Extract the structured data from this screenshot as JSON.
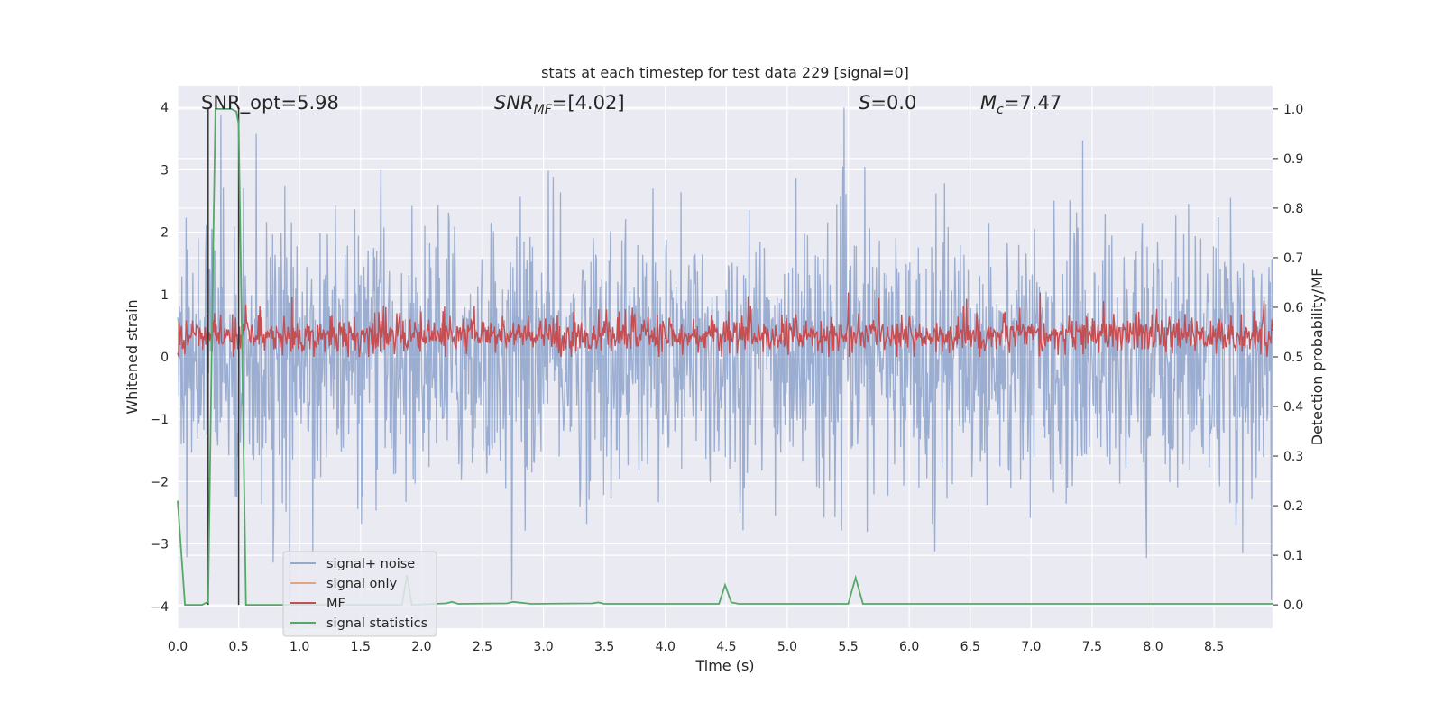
{
  "chart_data": {
    "type": "line",
    "title": "stats at each timestep for test data 229 [signal=0]",
    "xlabel": "Time (s)",
    "ylabel": "Whitened strain",
    "ylabel_right": "Detection probability/MF",
    "xlim": [
      0,
      8.98
    ],
    "ylim": [
      -4.35,
      4.35
    ],
    "ylim_right": [
      -0.047,
      1.047
    ],
    "x_ticks": [
      "0.0",
      "0.5",
      "1.0",
      "1.5",
      "2.0",
      "2.5",
      "3.0",
      "3.5",
      "4.0",
      "4.5",
      "5.0",
      "5.5",
      "6.0",
      "6.5",
      "7.0",
      "7.5",
      "8.0",
      "8.5"
    ],
    "y_ticks": [
      "−4",
      "−3",
      "−2",
      "−1",
      "0",
      "1",
      "2",
      "3",
      "4"
    ],
    "y_right_ticks": [
      "0.0",
      "0.1",
      "0.2",
      "0.3",
      "0.4",
      "0.5",
      "0.6",
      "0.7",
      "0.8",
      "0.9",
      "1.0"
    ],
    "annotations": {
      "snr_opt": "SNR_opt=5.98",
      "snr_mf_var": "SNR",
      "snr_mf_sub": "MF",
      "snr_mf_val": "=[4.02]",
      "s_var": "S",
      "s_val": "=0.0",
      "mc_var": "M",
      "mc_sub": "c",
      "mc_val": "=7.47"
    },
    "grid": true,
    "legend_position": "lower-left",
    "series": [
      {
        "name": "signal+ noise",
        "color": "#4c72b0",
        "description_range": [
          -3.9,
          4.0
        ]
      },
      {
        "name": "signal only",
        "color": "#dd8452"
      },
      {
        "name": "MF",
        "color": "#c44e52",
        "mf_range": [
          0.5,
          0.62
        ]
      },
      {
        "name": "signal statistics",
        "color": "#55a868",
        "x": [
          0.0,
          0.06,
          0.2,
          0.24,
          0.25,
          0.29,
          0.31,
          0.37,
          0.44,
          0.48,
          0.5,
          0.56,
          1.0,
          1.5,
          1.8,
          1.84,
          1.88,
          1.92,
          2.2,
          2.25,
          2.3,
          2.7,
          2.75,
          2.9,
          3.4,
          3.45,
          3.5,
          4.0,
          4.44,
          4.49,
          4.54,
          4.6,
          5.0,
          5.5,
          5.56,
          5.62,
          6.0,
          7.0,
          7.6,
          7.7,
          8.0,
          8.98
        ],
        "values": [
          0.21,
          0.0,
          0.0,
          0.005,
          0.005,
          0.7,
          1.0,
          1.0,
          1.0,
          0.995,
          0.97,
          0.0,
          0.0,
          0.0,
          0.0,
          0.0,
          0.06,
          0.0,
          0.003,
          0.006,
          0.002,
          0.003,
          0.006,
          0.002,
          0.003,
          0.005,
          0.002,
          0.002,
          0.002,
          0.04,
          0.005,
          0.002,
          0.002,
          0.002,
          0.055,
          0.002,
          0.002,
          0.002,
          0.002,
          0.002,
          0.002,
          0.002
        ]
      }
    ],
    "vlines": [
      0.25,
      0.5
    ],
    "vline_color": "#333333"
  }
}
